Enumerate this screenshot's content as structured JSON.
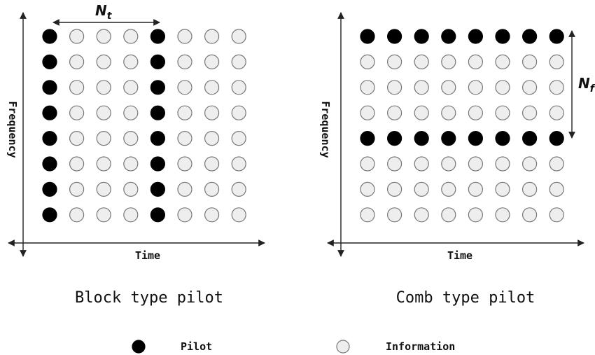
{
  "colors": {
    "pilot": "#000000",
    "information_fill": "#eeeeee",
    "information_stroke": "#777777",
    "axis": "#222222"
  },
  "panels": [
    {
      "name": "block",
      "caption": "Block type pilot",
      "x_label": "Time",
      "y_label": "Frequency",
      "spacing_symbol": "N",
      "spacing_subscript": "t",
      "rows": 8,
      "cols": 8,
      "pilot_columns": [
        0,
        4
      ],
      "pilot_rows": []
    },
    {
      "name": "comb",
      "caption": "Comb type pilot",
      "x_label": "Time",
      "y_label": "Frequency",
      "spacing_symbol": "N",
      "spacing_subscript": "f",
      "rows": 8,
      "cols": 8,
      "pilot_columns": [],
      "pilot_rows": [
        0,
        4
      ]
    }
  ],
  "legend": [
    {
      "label": "Pilot",
      "kind": "pilot",
      "icon": "filled-circle"
    },
    {
      "label": "Information",
      "kind": "information",
      "icon": "hollow-circle"
    }
  ]
}
